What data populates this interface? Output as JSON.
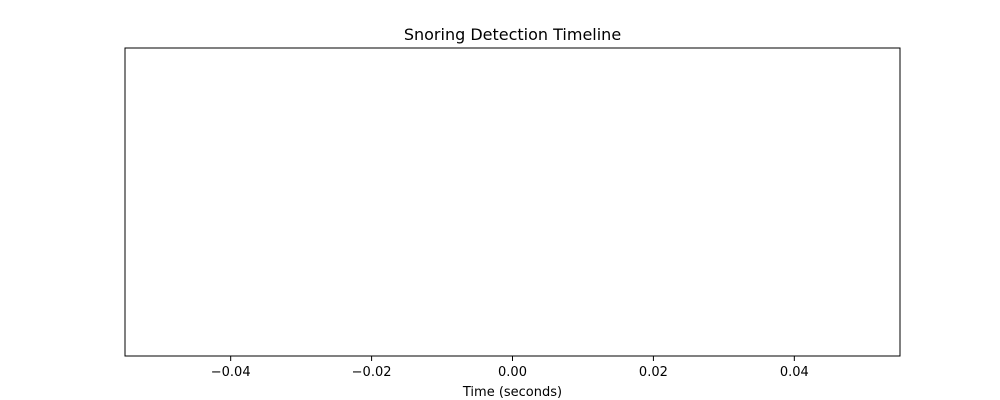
{
  "chart_data": {
    "type": "scatter",
    "title": "Snoring Detection Timeline",
    "xlabel": "Time (seconds)",
    "ylabel": "",
    "xlim": [
      -0.055,
      0.055
    ],
    "xticks": [
      -0.04,
      -0.02,
      0.0,
      0.02,
      0.04
    ],
    "xtick_labels": [
      "−0.04",
      "−0.02",
      "0.00",
      "0.02",
      "0.04"
    ],
    "yticks": [],
    "series": [],
    "grid": false,
    "legend": "none"
  }
}
